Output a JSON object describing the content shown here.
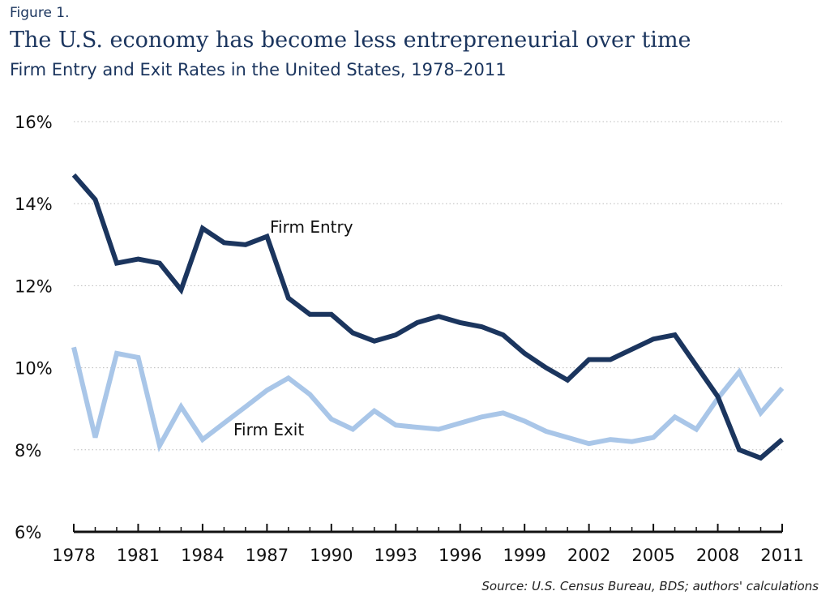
{
  "header": {
    "figure_label": "Figure 1.",
    "title": "The U.S. economy has become less entrepreneurial over time",
    "subtitle": "Firm Entry and Exit Rates in the United States, 1978–2011"
  },
  "source": "Source: U.S. Census Bureau, BDS; authors' calculations",
  "colors": {
    "entry": "#1b355e",
    "exit": "#a9c6e8",
    "grid": "#bbbbbb",
    "axis": "#111111"
  },
  "chart_data": {
    "type": "line",
    "title": "Firm Entry and Exit Rates in the United States, 1978–2011",
    "xlabel": "",
    "ylabel": "",
    "xlim": [
      1978,
      2011
    ],
    "ylim": [
      6,
      16
    ],
    "grid": true,
    "x_ticks": [
      1978,
      1981,
      1984,
      1987,
      1990,
      1993,
      1996,
      1999,
      2002,
      2005,
      2008,
      2011
    ],
    "x_tick_labels": [
      "1978",
      "1981",
      "1984",
      "1987",
      "1990",
      "1993",
      "1996",
      "1999",
      "2002",
      "2005",
      "2008",
      "2011"
    ],
    "y_ticks": [
      6,
      8,
      10,
      12,
      14,
      16
    ],
    "y_tick_labels": [
      "6%",
      "8%",
      "10%",
      "12%",
      "14%",
      "16%"
    ],
    "x": [
      1978,
      1979,
      1980,
      1981,
      1982,
      1983,
      1984,
      1985,
      1986,
      1987,
      1988,
      1989,
      1990,
      1991,
      1992,
      1993,
      1994,
      1995,
      1996,
      1997,
      1998,
      1999,
      2000,
      2001,
      2002,
      2003,
      2004,
      2005,
      2006,
      2007,
      2008,
      2009,
      2010,
      2011
    ],
    "series": [
      {
        "name": "Firm Entry",
        "values": [
          14.7,
          14.1,
          12.55,
          12.65,
          12.55,
          11.9,
          13.4,
          13.05,
          13.0,
          13.2,
          11.7,
          11.3,
          11.3,
          10.85,
          10.65,
          10.8,
          11.1,
          11.25,
          11.1,
          11.0,
          10.8,
          10.35,
          10.0,
          9.7,
          10.2,
          10.2,
          10.45,
          10.7,
          10.8,
          10.05,
          9.3,
          8.0,
          7.8,
          8.25
        ]
      },
      {
        "name": "Firm Exit",
        "values": [
          10.5,
          8.3,
          10.35,
          10.25,
          8.1,
          9.05,
          8.25,
          8.65,
          9.05,
          9.45,
          9.75,
          9.35,
          8.75,
          8.5,
          8.95,
          8.6,
          8.55,
          8.5,
          8.65,
          8.8,
          8.9,
          8.7,
          8.45,
          8.3,
          8.15,
          8.25,
          8.2,
          8.3,
          8.8,
          8.5,
          9.25,
          9.9,
          8.9,
          9.5
        ]
      }
    ],
    "annotations": [
      {
        "text": "Firm Entry",
        "series": "Firm Entry"
      },
      {
        "text": "Firm Exit",
        "series": "Firm Exit"
      }
    ]
  }
}
